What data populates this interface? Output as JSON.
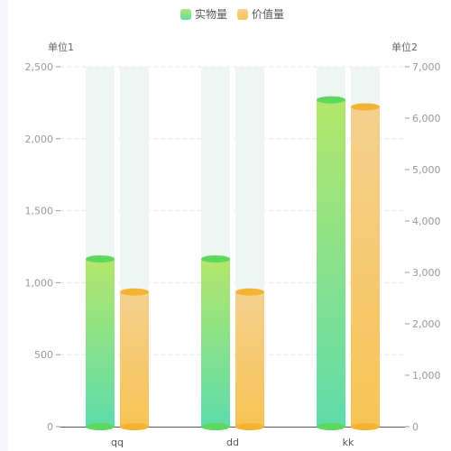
{
  "chart_data": {
    "type": "bar",
    "categories": [
      "qq",
      "dd",
      "kk"
    ],
    "series": [
      {
        "name": "实物量",
        "axis": "left",
        "values": [
          1165,
          1165,
          2270
        ],
        "color_top": "#b3e66a",
        "color_bottom": "#5fdcaa",
        "cap_color": "#5cd85c"
      },
      {
        "name": "价值量",
        "axis": "right",
        "values": [
          2620,
          2620,
          6220
        ],
        "color_top": "#f5cf8e",
        "color_bottom": "#f7c454",
        "cap_color": "#f5b335"
      }
    ],
    "background_bar_color": "#eef5f2",
    "y_left": {
      "unit": "单位1",
      "ylim": [
        0,
        2500
      ],
      "ticks": [
        "0",
        "500",
        "1,000",
        "1,500",
        "2,000",
        "2,500"
      ]
    },
    "y_right": {
      "unit": "单位2",
      "ylim": [
        0,
        7000
      ],
      "ticks": [
        "0",
        "1,000",
        "2,000",
        "3,000",
        "4,000",
        "5,000",
        "6,000",
        "7,000"
      ]
    },
    "legend_position": "top-center",
    "grid": true
  }
}
